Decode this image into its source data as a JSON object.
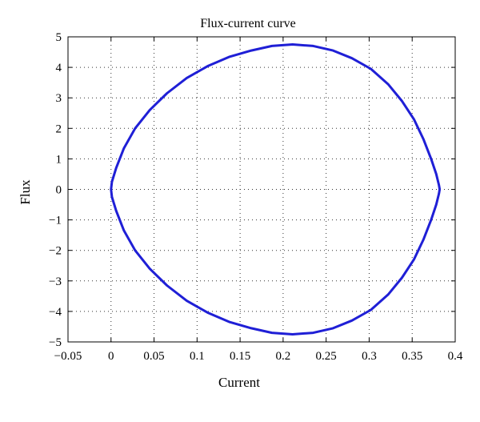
{
  "chart_data": {
    "type": "line",
    "title": "Flux-current curve",
    "xlabel": "Current",
    "ylabel": "Flux",
    "xlim": [
      -0.05,
      0.4
    ],
    "ylim": [
      -5,
      5
    ],
    "grid": true,
    "x_ticks": [
      -0.05,
      0,
      0.05,
      0.1,
      0.15,
      0.2,
      0.25,
      0.3,
      0.35,
      0.4
    ],
    "x_tick_labels": [
      "−0.05",
      "0",
      "0.05",
      "0.1",
      "0.15",
      "0.2",
      "0.25",
      "0.3",
      "0.35",
      "0.4"
    ],
    "y_ticks": [
      5,
      4,
      3,
      2,
      1,
      0,
      -1,
      -2,
      -3,
      -4,
      -5
    ],
    "y_tick_labels": [
      "5",
      "4",
      "3",
      "2",
      "1",
      "0",
      "−1",
      "−2",
      "−3",
      "−4",
      "−5"
    ],
    "series": [
      {
        "color": "#1f1fd6",
        "x": [
          0.211,
          0.235,
          0.258,
          0.28,
          0.302,
          0.322,
          0.338,
          0.352,
          0.363,
          0.372,
          0.378,
          0.381,
          0.382,
          0.381,
          0.378,
          0.372,
          0.363,
          0.352,
          0.338,
          0.322,
          0.302,
          0.28,
          0.258,
          0.235,
          0.211,
          0.187,
          0.163,
          0.138,
          0.113,
          0.088,
          0.065,
          0.045,
          0.028,
          0.015,
          0.006,
          0.001,
          0.0,
          0.001,
          0.006,
          0.015,
          0.028,
          0.045,
          0.065,
          0.088,
          0.113,
          0.138,
          0.163,
          0.187,
          0.211
        ],
        "y": [
          4.75,
          4.7,
          4.55,
          4.3,
          3.95,
          3.45,
          2.9,
          2.3,
          1.65,
          1.0,
          0.5,
          0.15,
          0.0,
          -0.15,
          -0.5,
          -1.0,
          -1.65,
          -2.3,
          -2.9,
          -3.45,
          -3.95,
          -4.3,
          -4.55,
          -4.7,
          -4.75,
          -4.7,
          -4.55,
          -4.35,
          -4.05,
          -3.65,
          -3.15,
          -2.6,
          -2.0,
          -1.35,
          -0.7,
          -0.25,
          0.0,
          0.25,
          0.7,
          1.35,
          2.0,
          2.6,
          3.15,
          3.65,
          4.05,
          4.35,
          4.55,
          4.7,
          4.75
        ]
      }
    ]
  }
}
